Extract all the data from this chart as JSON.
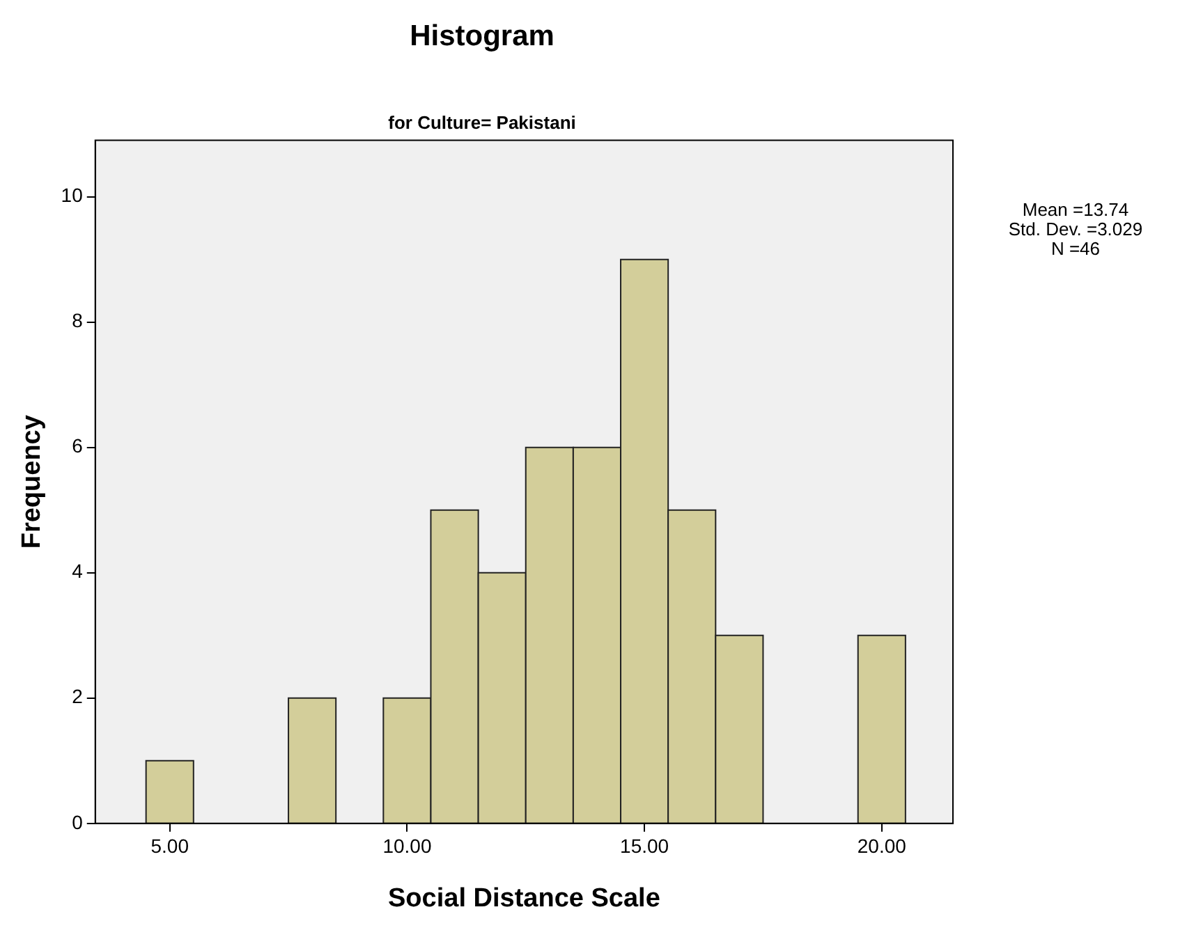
{
  "chart_data": {
    "type": "histogram",
    "title": "Histogram",
    "subtitle": "for Culture= Pakistani",
    "xlabel": "Social Distance Scale",
    "ylabel": "Frequency",
    "bins": [
      4.5,
      5.5,
      6.5,
      7.5,
      8.5,
      9.5,
      10.5,
      11.5,
      12.5,
      13.5,
      14.5,
      15.5,
      16.5,
      17.5,
      18.5,
      19.5,
      20.5
    ],
    "values": [
      1,
      0,
      0,
      2,
      0,
      2,
      5,
      4,
      6,
      6,
      9,
      5,
      3,
      0,
      0,
      3
    ],
    "color": "#d3ce9a",
    "xlim": [
      3.43,
      21.5
    ],
    "xticks": [
      {
        "value": 5,
        "label": "5.00"
      },
      {
        "value": 10,
        "label": "10.00"
      },
      {
        "value": 15,
        "label": "15.00"
      },
      {
        "value": 20,
        "label": "20.00"
      }
    ],
    "ylim": [
      0,
      10.9
    ],
    "yticks": [
      0,
      2,
      4,
      6,
      8,
      10
    ],
    "grid": false,
    "legend": false,
    "annotations": [
      "Mean =13.74",
      "Std. Dev. =3.029",
      "N =46"
    ]
  }
}
